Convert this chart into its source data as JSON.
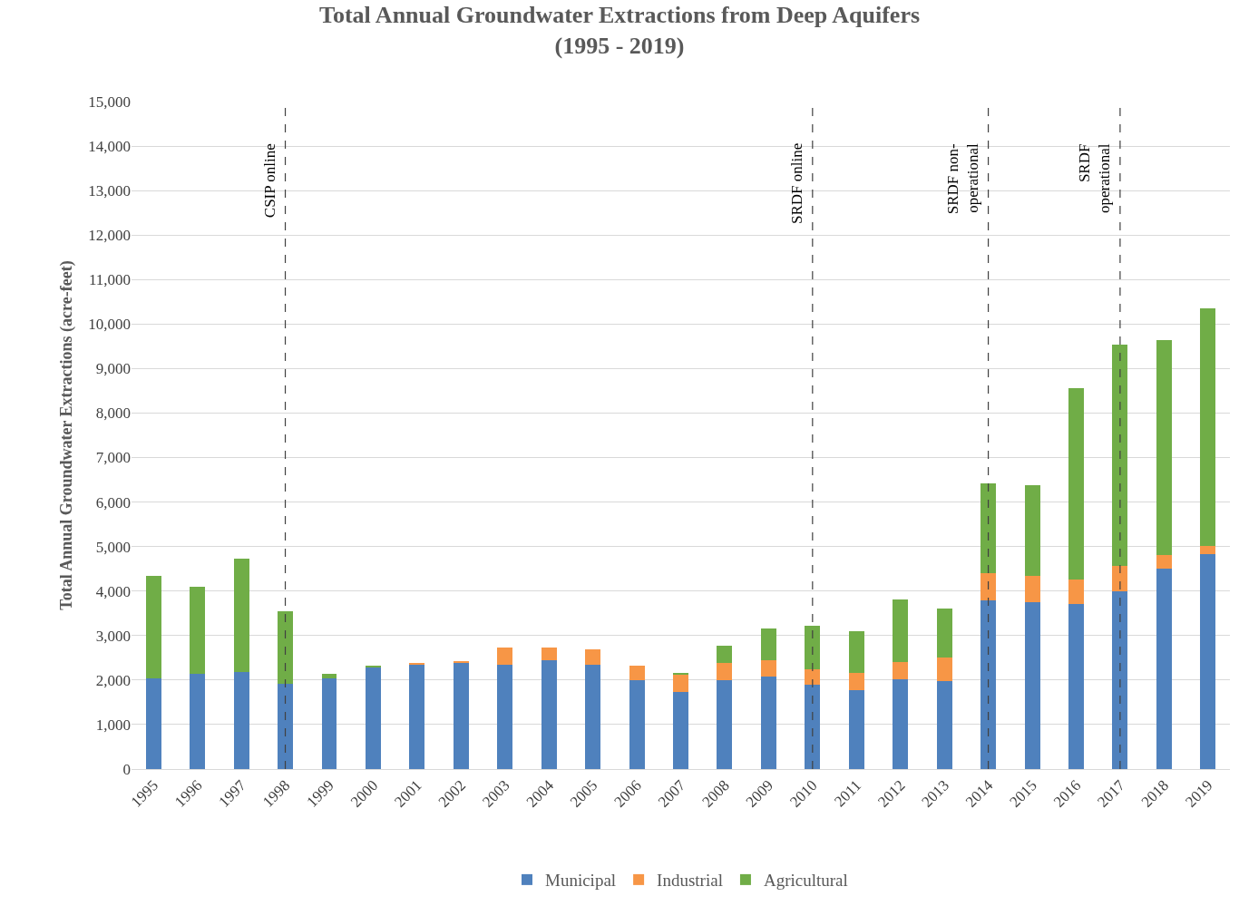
{
  "chart_data": {
    "type": "bar",
    "title": "Total Annual Groundwater Extractions from Deep Aquifers\n(1995 - 2019)",
    "ylabel": "Total Annual Groundwater Extractions (acre-feet)",
    "categories": [
      "1995",
      "1996",
      "1997",
      "1998",
      "1999",
      "2000",
      "2001",
      "2002",
      "2003",
      "2004",
      "2005",
      "2006",
      "2007",
      "2008",
      "2009",
      "2010",
      "2011",
      "2012",
      "2013",
      "2014",
      "2015",
      "2016",
      "2017",
      "2018",
      "2019"
    ],
    "stacked": true,
    "series": [
      {
        "name": "Municipal",
        "color": "#4f81bd",
        "values": [
          2030,
          2150,
          2190,
          1910,
          2030,
          2300,
          2350,
          2390,
          2350,
          2450,
          2350,
          2000,
          1730,
          2000,
          2080,
          1900,
          1780,
          2020,
          1970,
          3790,
          3760,
          3700,
          4000,
          4500,
          4830
        ]
      },
      {
        "name": "Industrial",
        "color": "#f79646",
        "values": [
          0,
          0,
          0,
          0,
          0,
          0,
          40,
          30,
          390,
          290,
          350,
          330,
          390,
          380,
          360,
          340,
          390,
          390,
          530,
          620,
          590,
          560,
          560,
          300,
          190
        ]
      },
      {
        "name": "Agricultural",
        "color": "#70ad47",
        "values": [
          2310,
          1950,
          2540,
          1640,
          100,
          30,
          0,
          0,
          0,
          0,
          0,
          0,
          50,
          390,
          720,
          980,
          930,
          1400,
          1100,
          2020,
          2020,
          4290,
          4970,
          4840,
          5340
        ]
      }
    ],
    "ylim": [
      0,
      15000
    ],
    "yticks": [
      {
        "value": 0,
        "label": "0"
      },
      {
        "value": 1000,
        "label": "1,000"
      },
      {
        "value": 2000,
        "label": "2,000"
      },
      {
        "value": 3000,
        "label": "3,000"
      },
      {
        "value": 4000,
        "label": "4,000"
      },
      {
        "value": 5000,
        "label": "5,000"
      },
      {
        "value": 6000,
        "label": "6,000"
      },
      {
        "value": 7000,
        "label": "7,000"
      },
      {
        "value": 8000,
        "label": "8,000"
      },
      {
        "value": 9000,
        "label": "9,000"
      },
      {
        "value": 10000,
        "label": "10,000"
      },
      {
        "value": 11000,
        "label": "11,000"
      },
      {
        "value": 12000,
        "label": "12,000"
      },
      {
        "value": 13000,
        "label": "13,000"
      },
      {
        "value": 14000,
        "label": "14,000"
      },
      {
        "value": 15000,
        "label": "15,000"
      }
    ],
    "ref_lines": [
      {
        "axis": "x",
        "value": "1998",
        "label": "CSIP online",
        "line_style": "dashed",
        "color": "#404040"
      },
      {
        "axis": "x",
        "value": "2010",
        "label": "SRDF online",
        "line_style": "dashed",
        "color": "#404040"
      },
      {
        "axis": "x",
        "value": "2014",
        "label": "SRDF non-\noperational",
        "line_style": "dashed",
        "color": "#404040"
      },
      {
        "axis": "x",
        "value": "2017",
        "label": "SRDF\noperational",
        "line_style": "dashed",
        "color": "#404040"
      }
    ],
    "grid": "y",
    "legend": "bottom"
  }
}
